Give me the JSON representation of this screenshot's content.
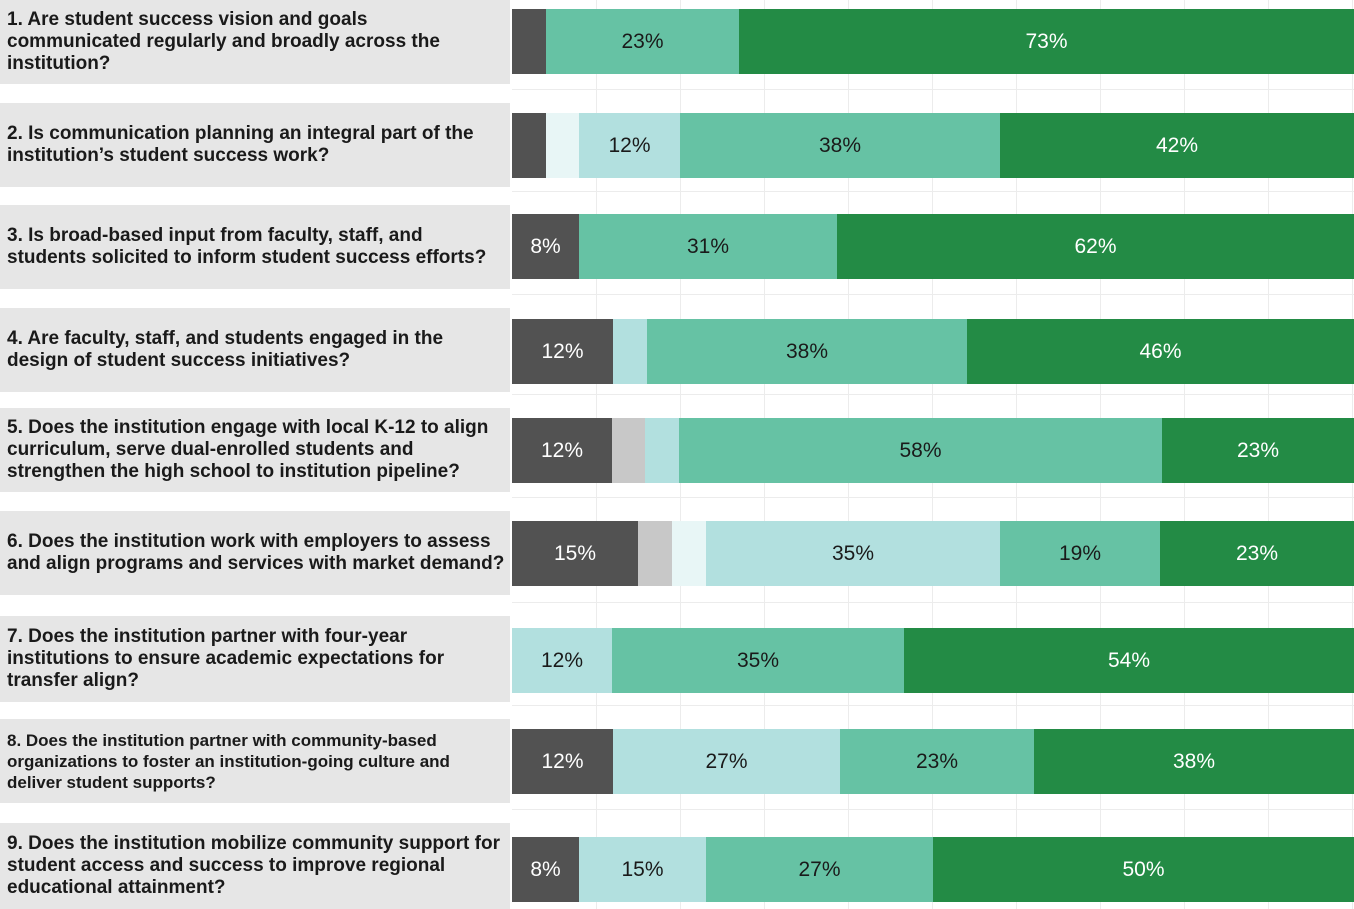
{
  "colors": {
    "level1": "#525252",
    "level2": "#c8c8c8",
    "level3": "#e8f6f6",
    "level4": "#b2e0df",
    "level5": "#66c2a4",
    "level6": "#238b45"
  },
  "chart_data": {
    "type": "bar",
    "orientation": "horizontal",
    "stacked": true,
    "xlim": [
      0,
      100
    ],
    "grid": true,
    "categories": [
      "1. Are student success vision and goals communicated regularly and broadly across the institution?",
      "2. Is communication planning an integral part of the institution’s student success work?",
      "3. Is broad-based input from faculty, staff, and students solicited to inform student success efforts?",
      "4. Are faculty, staff, and students engaged in the design of student success initiatives?",
      "5. Does the institution engage with local K-12 to align curriculum, serve dual-enrolled students and strengthen the high school to institution pipeline?",
      "6. Does the institution work with employers to assess and align programs and services with market demand?",
      "7. Does the institution partner with four-year institutions to ensure academic expectations for transfer align?",
      "8. Does the institution partner with community-based organizations to foster an institution-going culture and deliver student supports?",
      "9. Does the institution mobilize community support for student access and success to improve regional educational attainment?"
    ],
    "series": [
      {
        "values": [
          4,
          4,
          8,
          12,
          12,
          15,
          0,
          12,
          8
        ]
      },
      {
        "values": [
          0,
          0,
          0,
          0,
          4,
          4,
          0,
          0,
          0
        ]
      },
      {
        "values": [
          0,
          4,
          0,
          0,
          0,
          4,
          0,
          0,
          0
        ]
      },
      {
        "values": [
          0,
          12,
          0,
          4,
          4,
          35,
          12,
          27,
          15
        ]
      },
      {
        "values": [
          23,
          38,
          31,
          38,
          58,
          19,
          35,
          23,
          27
        ]
      },
      {
        "values": [
          73,
          42,
          62,
          46,
          23,
          23,
          54,
          38,
          50
        ]
      }
    ],
    "data_labels": [
      [
        "",
        "",
        "",
        "",
        "23%",
        "73%"
      ],
      [
        "",
        "",
        "",
        "12%",
        "38%",
        "42%"
      ],
      [
        "8%",
        "",
        "",
        "",
        "31%",
        "62%"
      ],
      [
        "12%",
        "",
        "",
        "",
        "38%",
        "46%"
      ],
      [
        "12%",
        "",
        "",
        "",
        "58%",
        "23%"
      ],
      [
        "15%",
        "",
        "",
        "35%",
        "19%",
        "23%"
      ],
      [
        "",
        "",
        "",
        "12%",
        "35%",
        "54%"
      ],
      [
        "12%",
        "",
        "",
        "27%",
        "23%",
        "38%"
      ],
      [
        "8%",
        "",
        "",
        "15%",
        "27%",
        "50%"
      ]
    ]
  }
}
